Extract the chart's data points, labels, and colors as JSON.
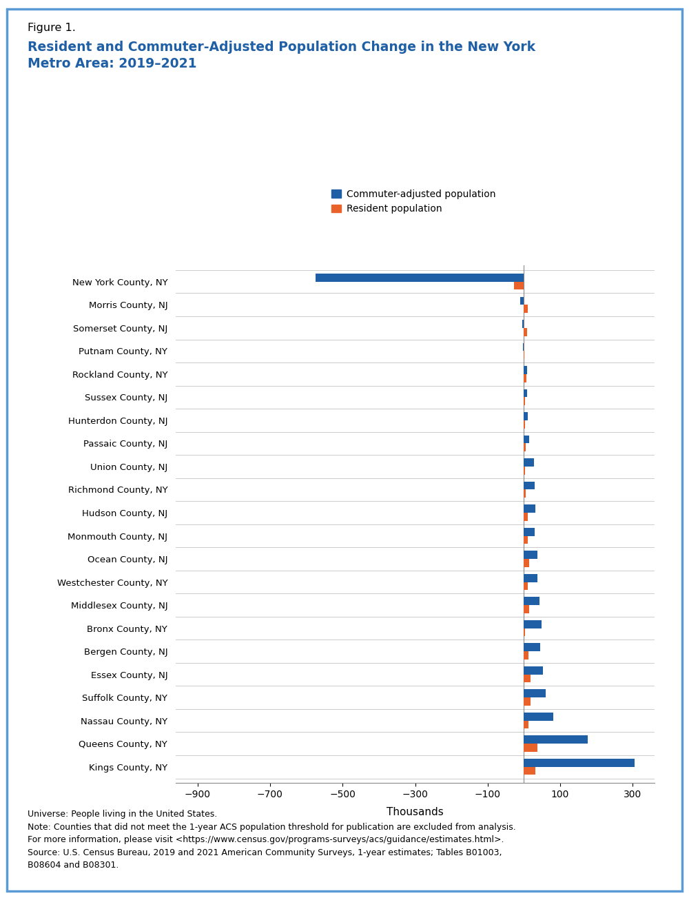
{
  "categories": [
    "New York County, NY",
    "Morris County, NJ",
    "Somerset County, NJ",
    "Putnam County, NY",
    "Rockland County, NY",
    "Sussex County, NJ",
    "Hunterdon County, NJ",
    "Passaic County, NJ",
    "Union County, NJ",
    "Richmond County, NY",
    "Hudson County, NJ",
    "Monmouth County, NJ",
    "Ocean County, NJ",
    "Westchester County, NY",
    "Middlesex County, NJ",
    "Bronx County, NY",
    "Bergen County, NJ",
    "Essex County, NJ",
    "Suffolk County, NY",
    "Nassau County, NY",
    "Queens County, NY",
    "Kings County, NY"
  ],
  "commuter_adjusted": [
    -575,
    -10,
    -5,
    -2,
    8,
    8,
    10,
    15,
    28,
    30,
    32,
    30,
    38,
    38,
    42,
    48,
    45,
    52,
    60,
    80,
    175,
    305
  ],
  "resident_population": [
    -28,
    10,
    9,
    1,
    7,
    2,
    2,
    5,
    3,
    5,
    10,
    10,
    14,
    10,
    14,
    2,
    12,
    18,
    18,
    12,
    38,
    32
  ],
  "commuter_color": "#1F5FA6",
  "resident_color": "#E8622A",
  "background_color": "#FFFFFF",
  "border_color": "#5B9BD5",
  "title_label": "Figure 1.",
  "title_main": "Resident and Commuter-Adjusted Population Change in the New York\nMetro Area: 2019–2021",
  "title_color": "#1F5FA6",
  "title_label_color": "#000000",
  "legend_labels": [
    "Commuter-adjusted population",
    "Resident population"
  ],
  "xlabel": "Thousands",
  "xlim": [
    -960,
    360
  ],
  "xticks": [
    -900,
    -700,
    -500,
    -300,
    -100,
    100,
    300
  ],
  "footnote": "Universe: People living in the United States.\nNote: Counties that did not meet the 1-year ACS population threshold for publication are excluded from analysis.\nFor more information, please visit <https://www.census.gov/programs-surveys/acs/guidance/estimates.html>.\nSource: U.S. Census Bureau, 2019 and 2021 American Community Surveys, 1-year estimates; Tables B01003,\nB08604 and B08301.",
  "bar_height": 0.35
}
